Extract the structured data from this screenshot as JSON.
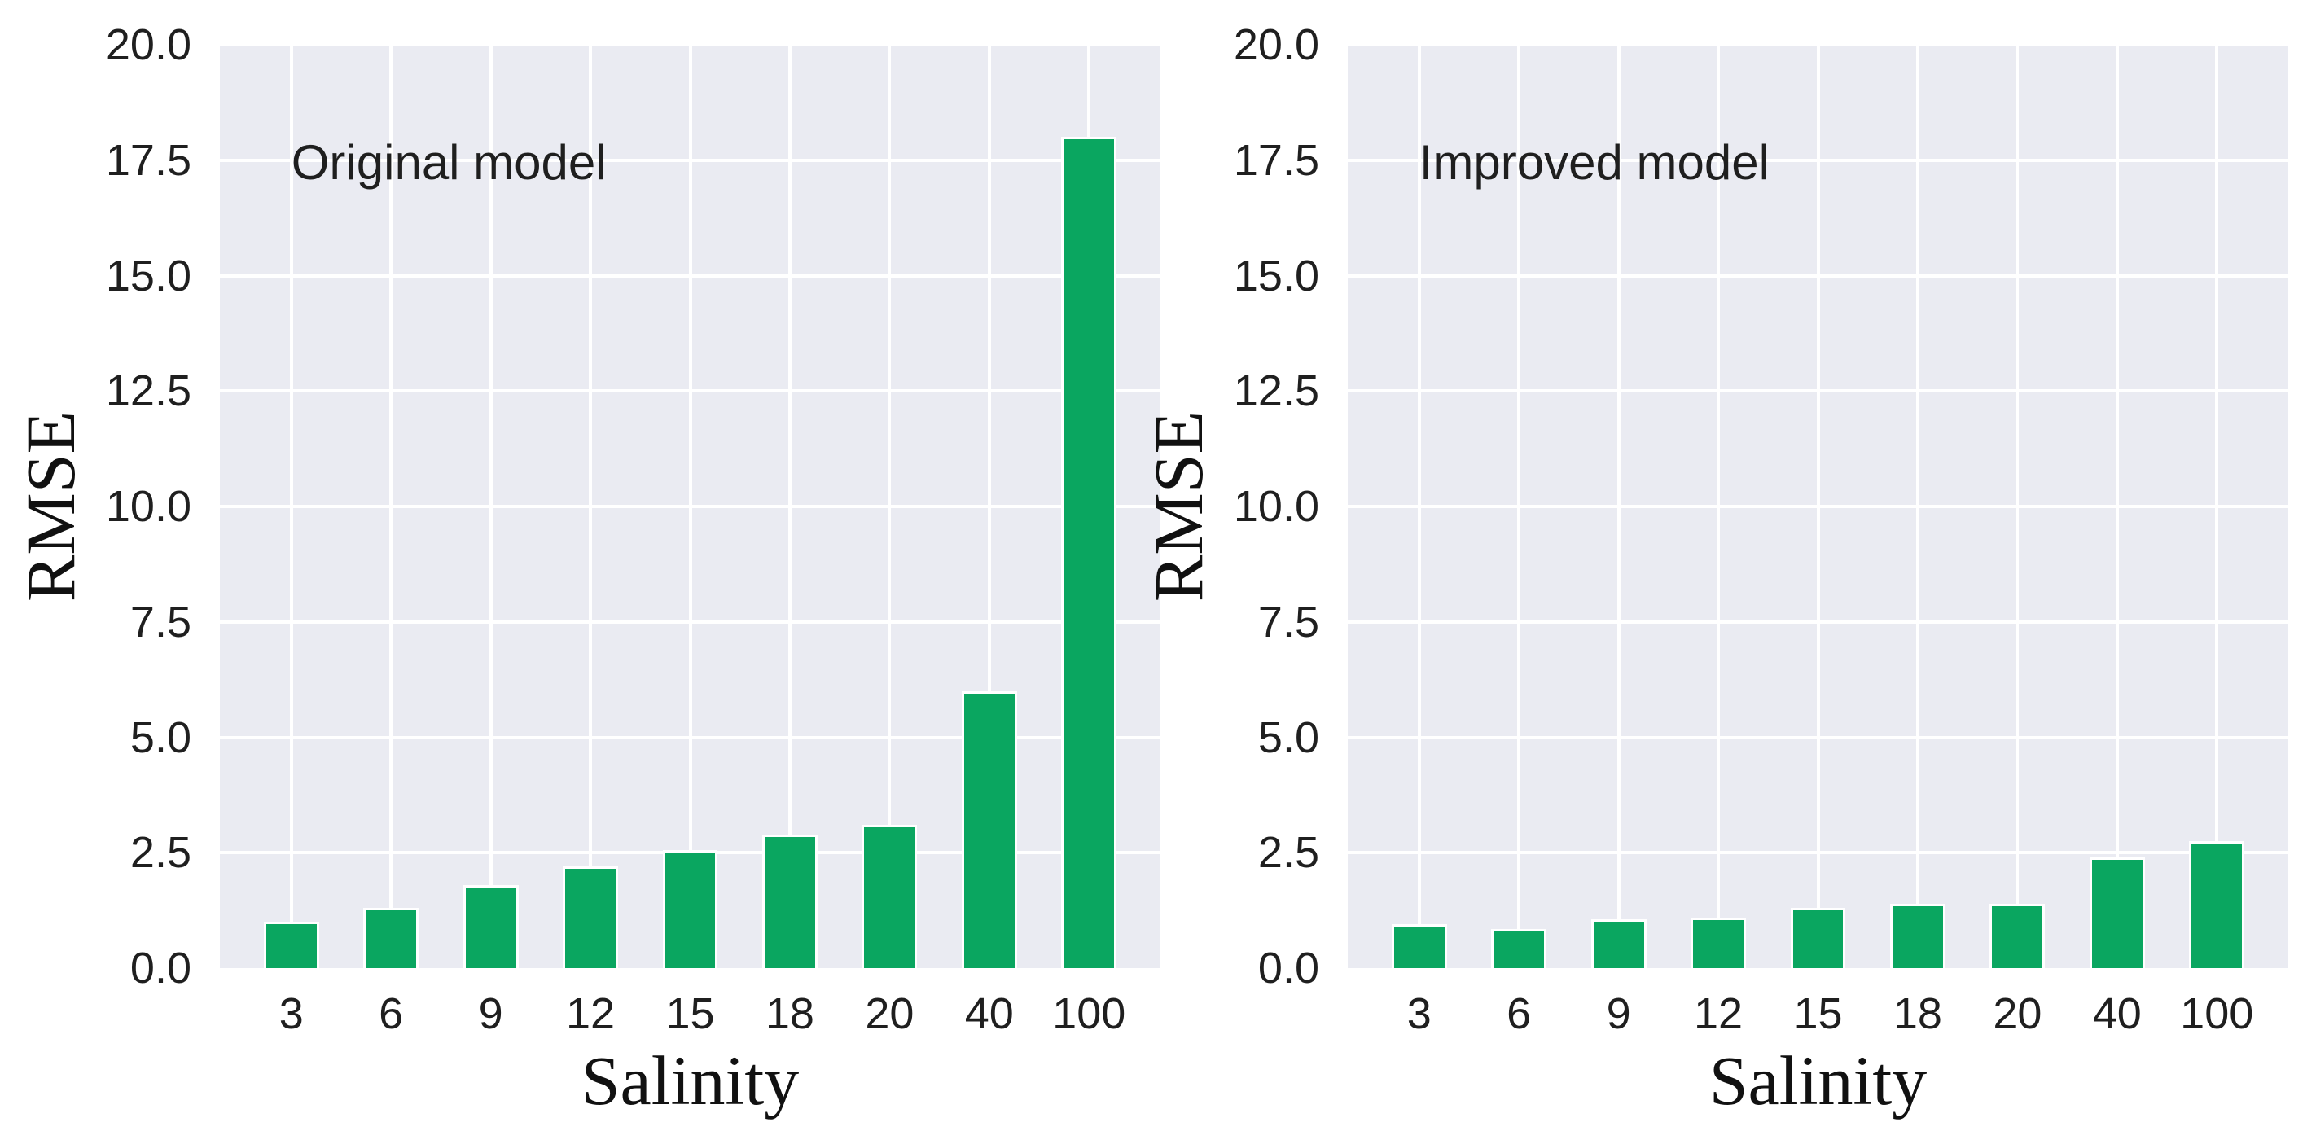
{
  "figure": {
    "background_color": "#ffffff",
    "plot_background_color": "#eaebf2",
    "grid_color": "#ffffff",
    "bar_color": "#0aa660",
    "bar_edge_color": "#ffffff",
    "tick_text_color": "#1f1f1f",
    "label_text_color": "#111111"
  },
  "chart_data": [
    {
      "type": "bar",
      "annotation": "Original model",
      "categories": [
        "3",
        "6",
        "9",
        "12",
        "15",
        "18",
        "20",
        "40",
        "100"
      ],
      "values": [
        1.0,
        1.3,
        1.8,
        2.2,
        2.55,
        2.9,
        3.1,
        6.0,
        18.0
      ],
      "xlabel": "Salinity",
      "ylabel": "RMSE",
      "ylim": [
        0,
        20
      ],
      "yticks": [
        "0.0",
        "2.5",
        "5.0",
        "7.5",
        "10.0",
        "12.5",
        "15.0",
        "17.5",
        "20.0"
      ],
      "grid": "on",
      "legend": "none"
    },
    {
      "type": "bar",
      "annotation": "Improved model",
      "categories": [
        "3",
        "6",
        "9",
        "12",
        "15",
        "18",
        "20",
        "40",
        "100"
      ],
      "values": [
        0.95,
        0.85,
        1.05,
        1.1,
        1.3,
        1.4,
        1.4,
        2.4,
        2.75
      ],
      "xlabel": "Salinity",
      "ylabel": "RMSE",
      "ylim": [
        0,
        20
      ],
      "yticks": [
        "0.0",
        "2.5",
        "5.0",
        "7.5",
        "10.0",
        "12.5",
        "15.0",
        "17.5",
        "20.0"
      ],
      "grid": "on",
      "legend": "none"
    }
  ]
}
